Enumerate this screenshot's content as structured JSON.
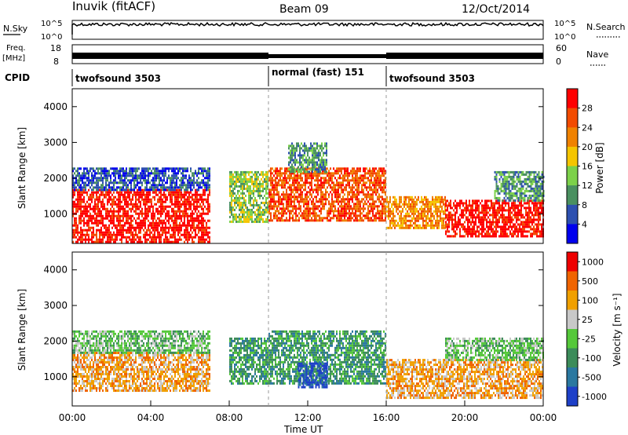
{
  "header": {
    "station": "Inuvik (fitACF)",
    "beam": "Beam 09",
    "date": "12/Oct/2014"
  },
  "status_panels": {
    "nsky_label": "N.Sky",
    "nsearch_label": "N.Search",
    "noise_ticks": [
      "10^5",
      "10^0"
    ],
    "freq_label_1": "Freq.",
    "freq_label_2": "[MHz]",
    "freq_ticks": [
      "18",
      "8"
    ],
    "nave_label": "Nave",
    "nave_ticks": [
      "60",
      "0"
    ],
    "cpid_label": "CPID",
    "cpid_segments": [
      {
        "label": "twofsound 3503",
        "start_hour": 0,
        "end_hour": 10
      },
      {
        "label": "normal (fast) 151",
        "start_hour": 10,
        "end_hour": 16
      },
      {
        "label": "twofsound 3503",
        "start_hour": 16,
        "end_hour": 24
      }
    ]
  },
  "chart_data": [
    {
      "type": "heatmap",
      "name": "power",
      "ylabel": "Slant Range [km]",
      "yticks": [
        1000,
        2000,
        3000,
        4000
      ],
      "ylim": [
        180,
        4500
      ],
      "xlim_hours": [
        0,
        24
      ],
      "colorbar_label": "Power [dB]",
      "colorbar_ticks": [
        "28",
        "24",
        "20",
        "16",
        "12",
        "8",
        "4"
      ],
      "colors": [
        "#0000ee",
        "#2d50b0",
        "#4a9060",
        "#7cd14a",
        "#f5c500",
        "#f08200",
        "#f24b00",
        "#ff0000"
      ],
      "regions": [
        {
          "h0": 0.0,
          "h1": 7.0,
          "r0": 200,
          "r1": 1700,
          "level": 7
        },
        {
          "h0": 0.0,
          "h1": 7.0,
          "r0": 1700,
          "r1": 2300,
          "level": 1
        },
        {
          "h0": 8.0,
          "h1": 10.0,
          "r0": 800,
          "r1": 2200,
          "level": 3
        },
        {
          "h0": 10.0,
          "h1": 16.0,
          "r0": 800,
          "r1": 2300,
          "level": 6
        },
        {
          "h0": 11.0,
          "h1": 13.0,
          "r0": 2200,
          "r1": 3000,
          "level": 2
        },
        {
          "h0": 16.0,
          "h1": 19.0,
          "r0": 600,
          "r1": 1500,
          "level": 5
        },
        {
          "h0": 19.0,
          "h1": 24.0,
          "r0": 400,
          "r1": 1400,
          "level": 7
        },
        {
          "h0": 21.5,
          "h1": 24.0,
          "r0": 1400,
          "r1": 2200,
          "level": 2
        }
      ]
    },
    {
      "type": "heatmap",
      "name": "velocity",
      "ylabel": "Slant Range [km]",
      "yticks": [
        1000,
        2000,
        3000,
        4000
      ],
      "ylim": [
        180,
        4500
      ],
      "xlabel": "Time UT",
      "xticks": [
        "00:00",
        "04:00",
        "08:00",
        "12:00",
        "16:00",
        "20:00",
        "00:00"
      ],
      "xlim_hours": [
        0,
        24
      ],
      "colorbar_label": "Velocity [m s⁻¹]",
      "colorbar_ticks": [
        "1000",
        "500",
        "100",
        "25",
        "-25",
        "-100",
        "-500",
        "-1000"
      ],
      "colors": [
        "#1e40c8",
        "#2a78a0",
        "#3c8c5a",
        "#55c83a",
        "#c8c8c8",
        "#f0a000",
        "#f06400",
        "#ee0000"
      ],
      "regions": [
        {
          "h0": 0.0,
          "h1": 7.0,
          "r0": 600,
          "r1": 1700,
          "level": 5
        },
        {
          "h0": 0.0,
          "h1": 7.0,
          "r0": 1700,
          "r1": 2300,
          "level": 3
        },
        {
          "h0": 8.0,
          "h1": 10.0,
          "r0": 800,
          "r1": 2100,
          "level": 2
        },
        {
          "h0": 10.0,
          "h1": 16.0,
          "r0": 800,
          "r1": 2300,
          "level": 2
        },
        {
          "h0": 11.5,
          "h1": 13.0,
          "r0": 700,
          "r1": 1400,
          "level": 0
        },
        {
          "h0": 16.0,
          "h1": 24.0,
          "r0": 400,
          "r1": 1500,
          "level": 5
        },
        {
          "h0": 19.0,
          "h1": 24.0,
          "r0": 1500,
          "r1": 2100,
          "level": 3
        }
      ]
    }
  ]
}
